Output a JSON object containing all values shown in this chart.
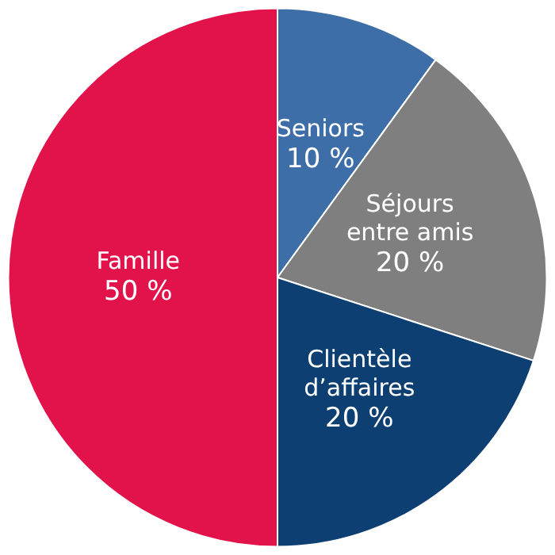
{
  "chart_data": {
    "type": "pie",
    "categories": [
      "Seniors",
      "Séjours entre amis",
      "Clientèle d’affaires",
      "Famille"
    ],
    "values": [
      10,
      20,
      20,
      50
    ],
    "value_labels": [
      "10 %",
      "20 %",
      "20 %",
      "50 %"
    ],
    "colors": [
      "#3d6ea8",
      "#7f7f7f",
      "#0e3f72",
      "#e2124b"
    ],
    "legend": false
  }
}
